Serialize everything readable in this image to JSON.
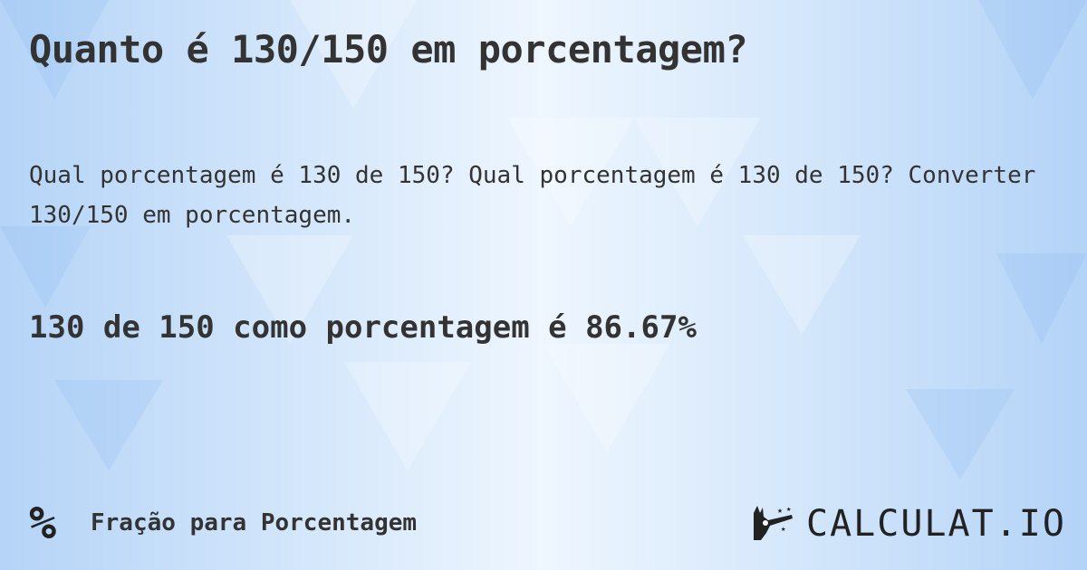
{
  "title": "Quanto é 130/150 em porcentagem?",
  "description": "Qual porcentagem é 130 de 150? Qual porcentagem é 130 de 150? Converter 130/150 em porcentagem.",
  "result": "130 de 150 como porcentagem é 86.67%",
  "footer": {
    "icon": "percent-icon",
    "icon_glyph": "%",
    "category": "Fração para Porcentagem"
  },
  "logo": {
    "text": "CALCULAT.IO",
    "icon": "magic-hand-icon"
  }
}
